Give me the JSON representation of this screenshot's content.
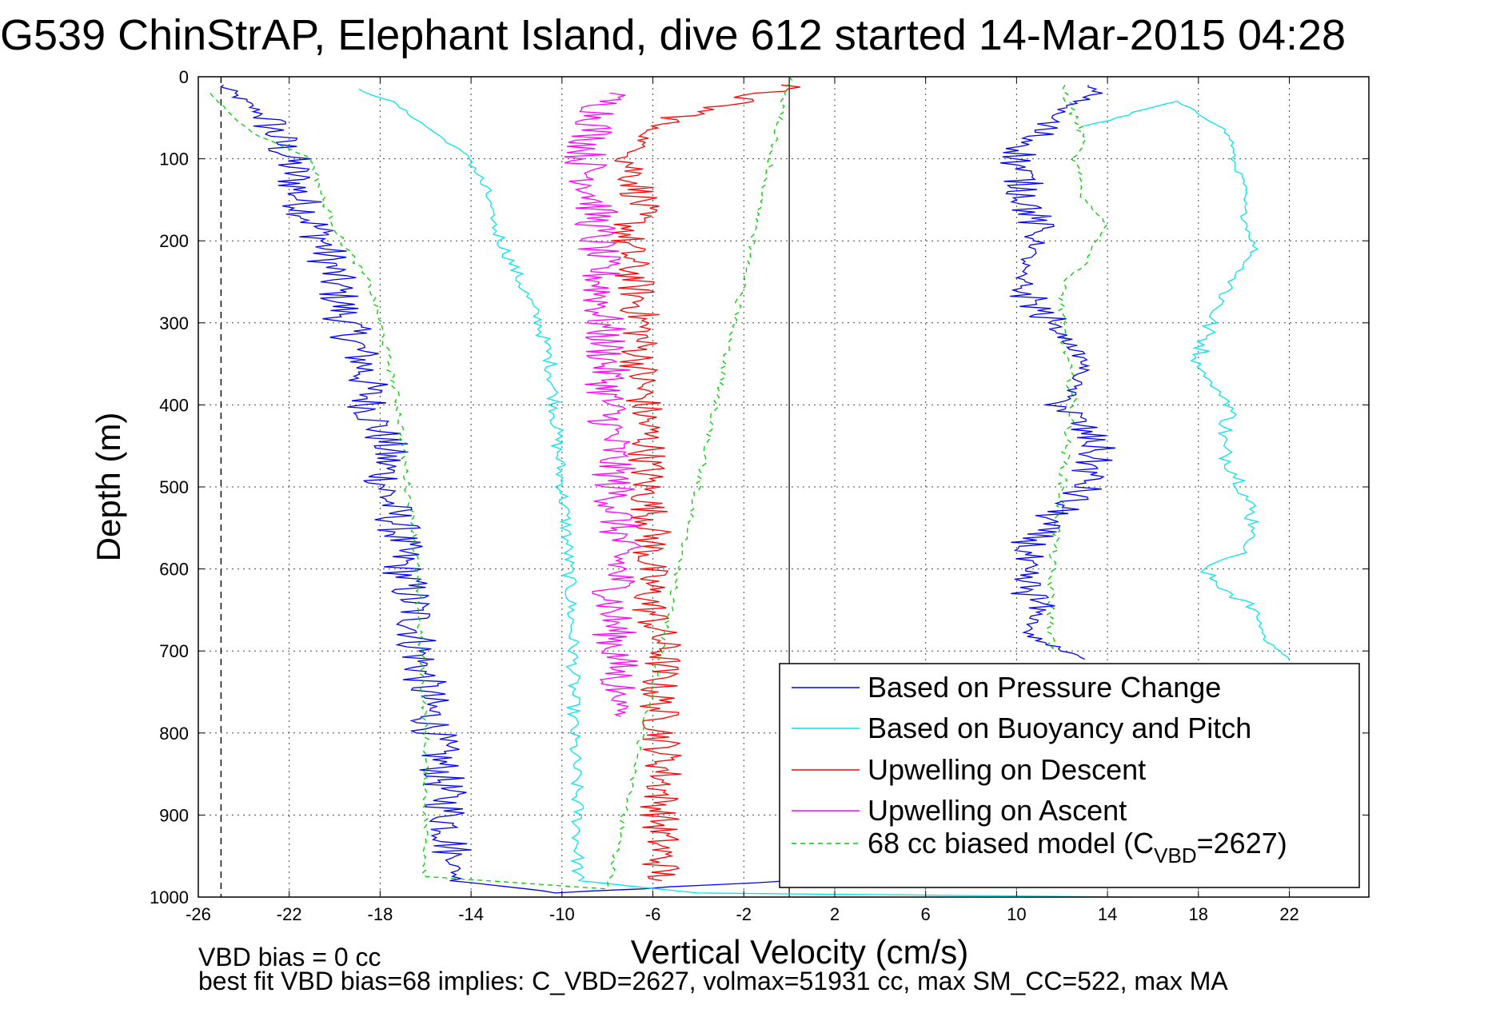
{
  "chart_data": {
    "type": "line",
    "title": "G539 ChinStrAP, Elephant Island, dive 612 started 14-Mar-2015 04:28",
    "xlabel": "Vertical Velocity (cm/s)",
    "ylabel": "Depth (m)",
    "xlim": [
      -26,
      25.5
    ],
    "ylim": [
      0,
      1000
    ],
    "y_reversed": true,
    "grid": true,
    "legend_position": "bottom-right",
    "xticks": [
      -26,
      -22,
      -18,
      -14,
      -10,
      -6,
      -2,
      2,
      6,
      10,
      14,
      18,
      22
    ],
    "yticks": [
      0,
      100,
      200,
      300,
      400,
      500,
      600,
      700,
      800,
      900,
      1000
    ],
    "zero_line_x": 0,
    "reference_line_x": -25,
    "series": [
      {
        "name": "Based on Pressure Change",
        "color": "#0000ff",
        "dash": "",
        "segments": [
          {
            "x": [
              -25,
              -23,
              -22,
              -21.5,
              -20.5,
              -20,
              -19.5,
              -18.7,
              -18.5,
              -17.7,
              -17.8,
              -17.2,
              -17,
              -16.5,
              -16.3,
              -16,
              -15.6,
              -15.3,
              -15,
              -14.8,
              -14.6,
              -10,
              0
            ],
            "y": [
              10,
              50,
              100,
              150,
              200,
              250,
              300,
              350,
              400,
              450,
              500,
              550,
              600,
              650,
              700,
              750,
              800,
              850,
              900,
              950,
              980,
              995,
              980
            ],
            "noise": 1.0,
            "step": 2.5
          }
        ]
      },
      {
        "name": "Based on Buoyancy and Pitch",
        "color": "#00e5ee",
        "dash": "",
        "segments": [
          {
            "x": [
              -19,
              -17.5,
              -16,
              -14,
              -13.2,
              -13,
              -12,
              -11,
              -10.5,
              -10.3,
              -10.2,
              -10,
              -9.8,
              -9.7,
              -9.6,
              -9.5,
              -9.5,
              -9.5,
              -9.4,
              -9.3,
              -9.3,
              -4,
              15
            ],
            "y": [
              15,
              30,
              60,
              100,
              150,
              180,
              240,
              300,
              350,
              400,
              450,
              500,
              550,
              600,
              650,
              700,
              750,
              800,
              850,
              900,
              980,
              995,
              1000
            ],
            "noise": 0.3,
            "step": 4
          },
          {
            "x": [
              13,
              14.5,
              15.5,
              17,
              19,
              19.5,
              19.5,
              20,
              20,
              20.5,
              19.5,
              18.5,
              18,
              18.7,
              19.5,
              19,
              20,
              20.5,
              20,
              18,
              20.5,
              21,
              21.7,
              22
            ],
            "y": [
              60,
              50,
              40,
              30,
              60,
              80,
              100,
              130,
              170,
              210,
              250,
              300,
              350,
              380,
              400,
              450,
              500,
              550,
              580,
              600,
              650,
              690,
              700,
              710
            ],
            "noise": 0.4,
            "step": 4
          }
        ]
      },
      {
        "name": "Upwelling on Descent",
        "color": "#ff0000",
        "dash": "",
        "segments": [
          {
            "x": [
              0,
              -6,
              -7,
              -6.5,
              -7.2,
              -6.8,
              -6.5,
              -6.6,
              -6.4,
              -6.2,
              -6.3,
              -6,
              -6.2,
              -6.1,
              -5.5,
              -5.8,
              -5.6,
              -5.5,
              -5.7,
              -5.6
            ],
            "y": [
              10,
              60,
              100,
              150,
              200,
              250,
              300,
              350,
              400,
              450,
              500,
              550,
              600,
              650,
              700,
              750,
              800,
              850,
              900,
              980
            ],
            "noise": 0.9,
            "step": 2.5
          }
        ]
      },
      {
        "name": "Upwelling on Ascent",
        "color": "#ff00ff",
        "dash": "",
        "segments": [
          {
            "x": [
              -8,
              -9,
              -8.5,
              -8.5,
              -8.3,
              -8.2,
              -8,
              -8,
              -7.8,
              -7.7,
              -7.5,
              -7.5,
              -7.8,
              -7.6,
              -7.5,
              -7.4
            ],
            "y": [
              20,
              100,
              150,
              200,
              250,
              300,
              350,
              400,
              450,
              500,
              550,
              600,
              650,
              700,
              750,
              780
            ],
            "noise": 1.0,
            "step": 2.5
          }
        ]
      },
      {
        "name": "68 cc biased model (C<sub>VBD</sub>=2627)",
        "color": "#00cc00",
        "dash": "6 5",
        "segments": [
          {
            "x": [
              -25.5,
              -24,
              -23.5,
              -21,
              -20.5,
              -19.7,
              -18.5,
              -18,
              -17.6,
              -17.2,
              -17,
              -16.8,
              -16.5,
              -16.4,
              -16.3,
              -16.2,
              -16.1,
              -16,
              -16,
              -16,
              -16,
              -8,
              0
            ],
            "y": [
              20,
              60,
              70,
              100,
              150,
              200,
              250,
              300,
              350,
              400,
              450,
              500,
              550,
              600,
              650,
              700,
              750,
              800,
              850,
              900,
              975,
              990,
              0
            ],
            "noise": 0.15,
            "step": 4
          },
          {
            "x": [
              12,
              13,
              12.5,
              13,
              14,
              13.5,
              13,
              12,
              12,
              12.5,
              12.2,
              12,
              11.8,
              11.5,
              11.5
            ],
            "y": [
              10,
              80,
              100,
              150,
              180,
              200,
              230,
              250,
              300,
              400,
              450,
              500,
              550,
              600,
              700
            ],
            "noise": 0.2,
            "step": 4
          }
        ]
      },
      {
        "name": "",
        "color": "#0000ff",
        "dash": "",
        "segments": [
          {
            "x": [
              13,
              13.5,
              12,
              11.5,
              10,
              10.5,
              11,
              10.5,
              10,
              11.5,
              12.5,
              13,
              12.5,
              12,
              13.5,
              13,
              11,
              10,
              11,
              10.5,
              12,
              13
            ],
            "y": [
              10,
              20,
              40,
              50,
              100,
              150,
              200,
              220,
              250,
              300,
              330,
              350,
              380,
              400,
              450,
              500,
              550,
              600,
              650,
              680,
              700,
              710
            ],
            "noise": 0.9,
            "step": 2.5
          }
        ]
      }
    ],
    "legend": [
      {
        "label": "Based on Pressure Change",
        "color": "#0000ff",
        "dash": ""
      },
      {
        "label": "Based on Buoyancy and Pitch",
        "color": "#00e5ee",
        "dash": ""
      },
      {
        "label": "Upwelling on Descent",
        "color": "#ff0000",
        "dash": ""
      },
      {
        "label": "Upwelling on Ascent",
        "color": "#ff00ff",
        "dash": ""
      },
      {
        "label": "68 cc biased model (C",
        "sub": "VBD",
        "tail": "=2627)",
        "color": "#00cc00",
        "dash": "6 5"
      }
    ],
    "annotations": [
      "VBD bias = 0 cc",
      "best fit VBD bias=68 implies: C_VBD=2627, volmax=51931 cc, max SM_CC=522, max MA"
    ]
  }
}
